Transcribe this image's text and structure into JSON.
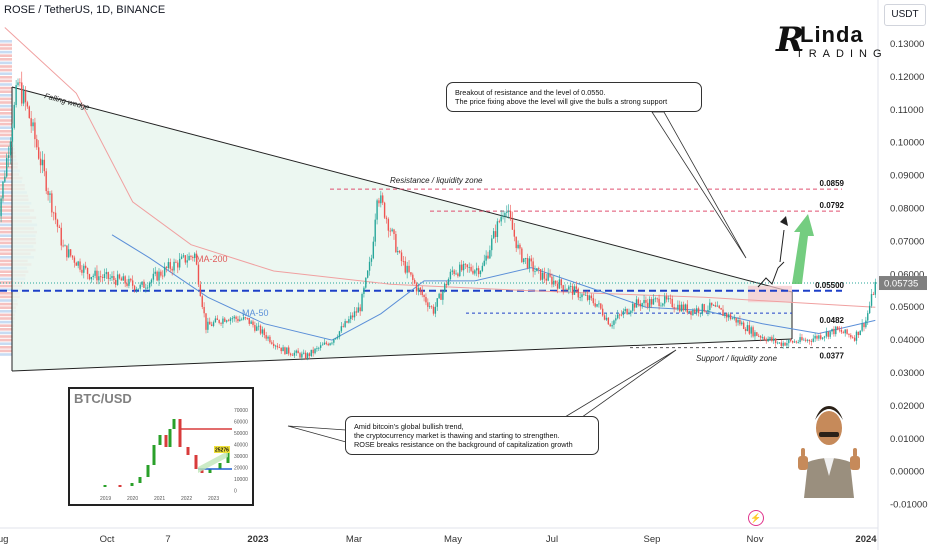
{
  "header": {
    "title": "ROSE / TetherUS, 1D, BINANCE",
    "currency": "USDT"
  },
  "brand": {
    "mark": "R",
    "line1": "Linda",
    "line2": "TRADING"
  },
  "annotations": {
    "falling_wedge": "Falling wedge",
    "resistance_zone": "Resistance / liquidity zone",
    "support_zone": "Support / liquidity zone",
    "ma200": "MA-200",
    "ma50": "MA-50"
  },
  "callouts": {
    "breakout": [
      "Breakout of resistance and the level of 0.0550.",
      "The price fixing above the level will give the bulls a strong support"
    ],
    "macro": [
      "Amid bitcoin's global bullish trend,",
      "the cryptocurrency market is thawing and starting to strengthen.",
      "ROSE breaks resistance on the background of capitalization growth"
    ]
  },
  "inset": {
    "title": "BTC/USD",
    "y_ticks": [
      "70000",
      "60000",
      "50000",
      "40000",
      "30000",
      "20000",
      "10000",
      "0"
    ],
    "x_ticks": [
      "2019",
      "2020",
      "2021",
      "2022",
      "2023"
    ],
    "badge": "25276"
  },
  "colors": {
    "up": "#26a69a",
    "down": "#ef5350",
    "ma200": "#f0a0a0",
    "ma50": "#5b8fd8",
    "level_blue": "#1e40c8",
    "level_red": "#e05070",
    "wedge_fill": "#e9f6ef",
    "arrow_green": "#5cc46a",
    "price_badge": "#808080"
  },
  "chart_data": {
    "type": "candlestick",
    "title": "ROSE / TetherUS, 1D, BINANCE",
    "y_axis": {
      "ticks": [
        "0.13000",
        "0.12000",
        "0.11000",
        "0.10000",
        "0.09000",
        "0.08000",
        "0.07000",
        "0.06000",
        "0.05000",
        "0.04000",
        "0.03000",
        "0.02000",
        "0.01000",
        "0.00000",
        "-0.01000"
      ],
      "range": [
        -0.0125,
        0.1395
      ],
      "position": "right"
    },
    "x_axis": {
      "ticks": [
        "Aug",
        "Oct",
        "7",
        "2023",
        "Mar",
        "May",
        "Jul",
        "Sep",
        "Nov",
        "2024"
      ]
    },
    "last_price": "0.05735",
    "levels": [
      {
        "label": "0.0859",
        "value": 0.0859
      },
      {
        "label": "0.0792",
        "value": 0.0792
      },
      {
        "label": "0.05500",
        "value": 0.055
      },
      {
        "label": "0.0482",
        "value": 0.0482
      },
      {
        "label": "0.0377",
        "value": 0.0377
      }
    ],
    "keypoints": [
      [
        "2022-07-20",
        0.072
      ],
      [
        "2022-08-01",
        0.118
      ],
      [
        "2022-08-06",
        0.11
      ],
      [
        "2022-08-15",
        0.09
      ],
      [
        "2022-08-25",
        0.068
      ],
      [
        "2022-09-08",
        0.06
      ],
      [
        "2022-09-25",
        0.058
      ],
      [
        "2022-10-05",
        0.056
      ],
      [
        "2022-10-20",
        0.062
      ],
      [
        "2022-11-03",
        0.066
      ],
      [
        "2022-11-09",
        0.044
      ],
      [
        "2022-11-20",
        0.047
      ],
      [
        "2022-12-01",
        0.046
      ],
      [
        "2022-12-20",
        0.037
      ],
      [
        "2023-01-01",
        0.035
      ],
      [
        "2023-01-15",
        0.04
      ],
      [
        "2023-01-30",
        0.05
      ],
      [
        "2023-02-05",
        0.065
      ],
      [
        "2023-02-08",
        0.085
      ],
      [
        "2023-02-12",
        0.079
      ],
      [
        "2023-02-20",
        0.065
      ],
      [
        "2023-03-01",
        0.056
      ],
      [
        "2023-03-10",
        0.049
      ],
      [
        "2023-03-20",
        0.061
      ],
      [
        "2023-04-05",
        0.062
      ],
      [
        "2023-04-17",
        0.081
      ],
      [
        "2023-04-25",
        0.066
      ],
      [
        "2023-05-05",
        0.06
      ],
      [
        "2023-05-20",
        0.056
      ],
      [
        "2023-06-05",
        0.051
      ],
      [
        "2023-06-12",
        0.045
      ],
      [
        "2023-06-25",
        0.051
      ],
      [
        "2023-07-10",
        0.052
      ],
      [
        "2023-07-25",
        0.049
      ],
      [
        "2023-08-05",
        0.05
      ],
      [
        "2023-08-18",
        0.046
      ],
      [
        "2023-08-28",
        0.042
      ],
      [
        "2023-09-10",
        0.039
      ],
      [
        "2023-09-25",
        0.04
      ],
      [
        "2023-10-10",
        0.043
      ],
      [
        "2023-10-20",
        0.041
      ],
      [
        "2023-10-26",
        0.046
      ],
      [
        "2023-10-31",
        0.057
      ]
    ],
    "ma200_keypoints": [
      [
        "2022-07-25",
        0.135
      ],
      [
        "2022-09-01",
        0.115
      ],
      [
        "2022-10-01",
        0.082
      ],
      [
        "2022-11-01",
        0.069
      ],
      [
        "2022-12-15",
        0.061
      ],
      [
        "2023-02-15",
        0.057
      ],
      [
        "2023-05-01",
        0.055
      ],
      [
        "2023-08-01",
        0.053
      ],
      [
        "2023-10-31",
        0.05
      ]
    ],
    "ma50_keypoints": [
      [
        "2022-09-20",
        0.072
      ],
      [
        "2022-10-10",
        0.065
      ],
      [
        "2022-11-10",
        0.053
      ],
      [
        "2022-12-10",
        0.045
      ],
      [
        "2023-01-15",
        0.04
      ],
      [
        "2023-02-10",
        0.048
      ],
      [
        "2023-03-05",
        0.058
      ],
      [
        "2023-04-01",
        0.058
      ],
      [
        "2023-05-01",
        0.062
      ],
      [
        "2023-06-01",
        0.056
      ],
      [
        "2023-07-01",
        0.05
      ],
      [
        "2023-08-01",
        0.049
      ],
      [
        "2023-09-01",
        0.045
      ],
      [
        "2023-10-01",
        0.042
      ],
      [
        "2023-10-31",
        0.046
      ]
    ]
  }
}
